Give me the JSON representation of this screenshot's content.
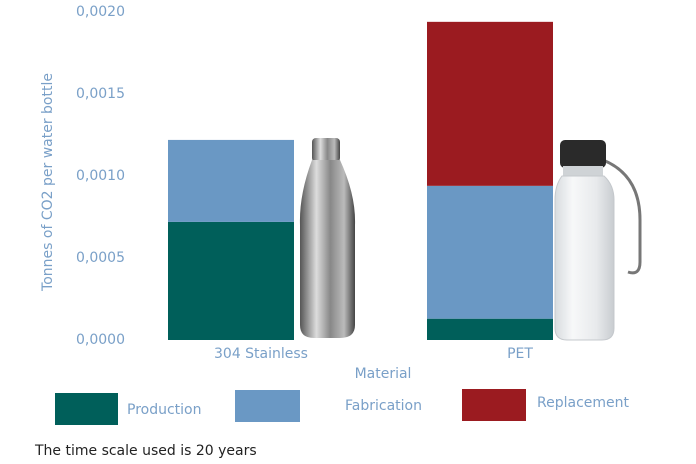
{
  "chart_data": {
    "type": "bar",
    "stacked": true,
    "categories": [
      "304 Stainless",
      "PET"
    ],
    "series": [
      {
        "name": "Production",
        "color": "#005f5a",
        "values": [
          0.00072,
          0.00013
        ]
      },
      {
        "name": "Fabrication",
        "color": "#6a98c4",
        "values": [
          0.0005,
          0.00081
        ]
      },
      {
        "name": "Replacement",
        "color": "#9b1b20",
        "values": [
          0,
          0.001
        ]
      }
    ],
    "xlabel": "Material",
    "ylabel": "Tonnes of CO2 per water bottle",
    "ylim": [
      0,
      0.002
    ],
    "yticks": [
      {
        "value": 0,
        "label": "0,0000"
      },
      {
        "value": 0.0005,
        "label": "0,0005"
      },
      {
        "value": 0.001,
        "label": "0,0010"
      },
      {
        "value": 0.0015,
        "label": "0,0015"
      },
      {
        "value": 0.002,
        "label": "0,0020"
      }
    ],
    "grid": false,
    "note": "The time scale used is 20 years"
  }
}
